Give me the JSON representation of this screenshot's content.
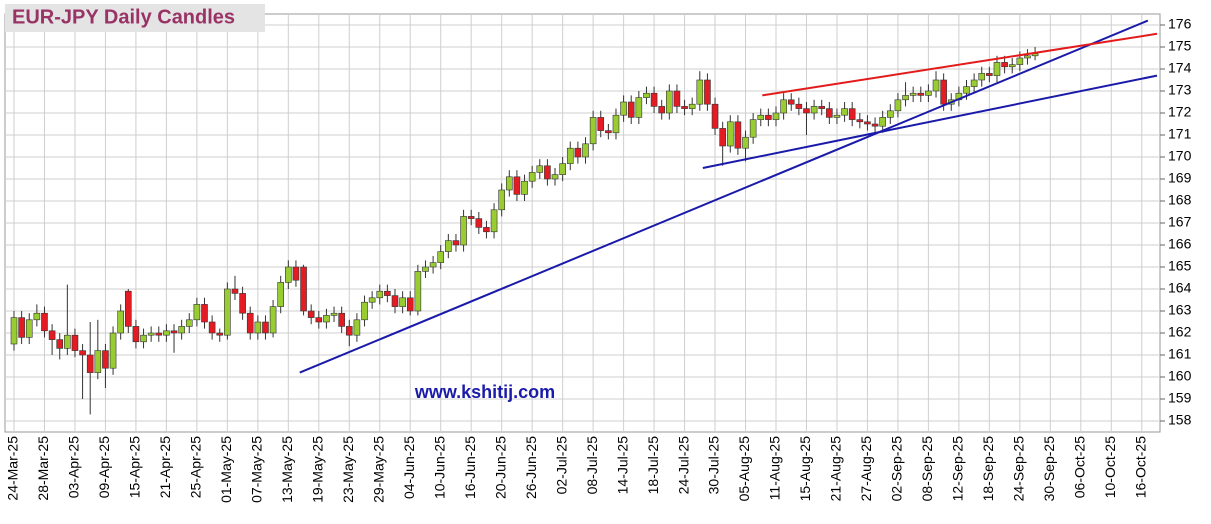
{
  "chart_data": {
    "type": "candlestick",
    "title": "EUR-JPY Daily  Candles",
    "annotation": "www.kshitij.com",
    "categories": [
      "24-Mar-25",
      null,
      null,
      null,
      "28-Mar-25",
      null,
      null,
      null,
      "03-Apr-25",
      null,
      null,
      null,
      "09-Apr-25",
      null,
      null,
      null,
      "15-Apr-25",
      null,
      null,
      null,
      "21-Apr-25",
      null,
      null,
      null,
      "25-Apr-25",
      null,
      null,
      null,
      "01-May-25",
      null,
      null,
      null,
      "07-May-25",
      null,
      null,
      null,
      "13-May-25",
      null,
      null,
      null,
      "19-May-25",
      null,
      null,
      null,
      "23-May-25",
      null,
      null,
      null,
      "29-May-25",
      null,
      null,
      null,
      "04-Jun-25",
      null,
      null,
      null,
      "10-Jun-25",
      null,
      null,
      null,
      "16-Jun-25",
      null,
      null,
      null,
      "20-Jun-25",
      null,
      null,
      null,
      "26-Jun-25",
      null,
      null,
      null,
      "02-Jul-25",
      null,
      null,
      null,
      "08-Jul-25",
      null,
      null,
      null,
      "14-Jul-25",
      null,
      null,
      null,
      "18-Jul-25",
      null,
      null,
      null,
      "24-Jul-25",
      null,
      null,
      null,
      "30-Jul-25",
      null,
      null,
      null,
      "05-Aug-25",
      null,
      null,
      null,
      "11-Aug-25",
      null,
      null,
      null,
      "15-Aug-25",
      null,
      null,
      null,
      "21-Aug-25",
      null,
      null,
      null,
      "27-Aug-25",
      null,
      null,
      null,
      "02-Sep-25",
      null,
      null,
      null,
      "08-Sep-25",
      null,
      null,
      null,
      "12-Sep-25",
      null,
      null,
      null,
      "18-Sep-25",
      null,
      null,
      null,
      "24-Sep-25",
      null,
      null,
      null,
      "30-Sep-25",
      null,
      null,
      null,
      "06-Oct-25",
      null,
      null,
      null,
      "10-Oct-25",
      null,
      null,
      null,
      "16-Oct-25",
      null
    ],
    "open": [
      161.5,
      162.7,
      161.8,
      162.6,
      162.9,
      162.1,
      161.7,
      161.3,
      161.9,
      161.2,
      161.0,
      160.2,
      161.2,
      160.4,
      162.0,
      163.9,
      162.3,
      161.6,
      161.9,
      162.0,
      161.9,
      162.1,
      162.0,
      162.3,
      162.6,
      163.3,
      162.5,
      162.0,
      161.9,
      164.0,
      163.8,
      162.9,
      162.0,
      162.5,
      162.0,
      163.2,
      164.3,
      165.0,
      165.0,
      163.0,
      162.7,
      162.5,
      162.8,
      162.9,
      162.3,
      161.9,
      162.6,
      163.4,
      163.6,
      163.9,
      163.7,
      163.2,
      163.6,
      163.0,
      164.8,
      165.0,
      165.2,
      165.7,
      166.2,
      166.0,
      167.3,
      167.2,
      166.8,
      166.6,
      167.6,
      168.5,
      169.1,
      168.3,
      168.9,
      169.3,
      169.6,
      169.0,
      169.2,
      169.7,
      170.4,
      170.0,
      170.6,
      171.8,
      171.2,
      171.1,
      171.9,
      172.5,
      171.8,
      172.7,
      172.9,
      172.3,
      172.0,
      173.0,
      172.3,
      172.2,
      172.4,
      173.5,
      172.4,
      171.3,
      170.5,
      171.6,
      170.4,
      170.9,
      171.7,
      171.9,
      171.7,
      172.0,
      172.6,
      172.4,
      172.2,
      172.0,
      172.3,
      172.2,
      171.8,
      171.9,
      172.2,
      171.7,
      171.6,
      171.5,
      171.4,
      171.8,
      172.1,
      172.6,
      172.8,
      172.9,
      172.8,
      173.0,
      173.5,
      172.4,
      172.6,
      172.9,
      173.2,
      173.5,
      173.8,
      173.7,
      174.3,
      174.1,
      174.2,
      174.5,
      174.6,
      null,
      null,
      null,
      null,
      null,
      null,
      null,
      null,
      null,
      null,
      null,
      null,
      null,
      null,
      null
    ],
    "high": [
      163.0,
      163.0,
      162.9,
      163.3,
      163.2,
      162.4,
      162.0,
      164.2,
      162.2,
      161.5,
      162.5,
      162.6,
      161.5,
      162.3,
      163.3,
      164.0,
      162.6,
      162.2,
      162.3,
      162.3,
      162.4,
      162.4,
      162.6,
      162.9,
      163.6,
      163.6,
      162.8,
      162.2,
      164.3,
      164.6,
      164.1,
      163.2,
      162.8,
      162.8,
      163.5,
      164.6,
      165.3,
      165.3,
      165.1,
      163.3,
      163.0,
      163.1,
      163.2,
      163.2,
      162.6,
      162.9,
      163.7,
      163.9,
      164.2,
      164.2,
      164.0,
      163.9,
      163.9,
      165.1,
      165.3,
      165.5,
      166.0,
      166.5,
      166.5,
      167.6,
      167.6,
      167.5,
      167.1,
      167.9,
      168.8,
      169.4,
      169.4,
      169.2,
      169.6,
      169.9,
      169.9,
      169.5,
      170.0,
      170.7,
      170.7,
      170.9,
      172.1,
      172.1,
      171.5,
      172.2,
      172.8,
      172.8,
      173.0,
      173.2,
      173.2,
      172.6,
      173.3,
      173.3,
      172.6,
      172.7,
      173.9,
      173.8,
      172.7,
      171.6,
      171.9,
      171.9,
      171.2,
      172.0,
      172.2,
      172.2,
      172.3,
      172.9,
      172.9,
      172.7,
      172.5,
      172.6,
      172.6,
      172.5,
      172.2,
      172.5,
      172.5,
      172.0,
      171.9,
      171.8,
      172.1,
      172.4,
      172.9,
      173.4,
      173.2,
      173.2,
      173.3,
      173.9,
      173.8,
      172.9,
      173.2,
      173.5,
      173.8,
      174.1,
      174.1,
      174.6,
      174.6,
      174.5,
      174.8,
      174.9,
      175.0,
      null,
      null,
      null,
      null,
      null,
      null,
      null,
      null,
      null,
      null,
      null,
      null,
      null,
      null,
      null
    ],
    "low": [
      161.2,
      161.5,
      161.5,
      162.3,
      161.8,
      161.0,
      160.8,
      161.0,
      160.9,
      159.0,
      158.3,
      159.9,
      159.5,
      160.1,
      161.7,
      162.0,
      161.3,
      161.3,
      161.6,
      161.6,
      161.6,
      161.1,
      161.7,
      162.0,
      162.3,
      162.2,
      161.7,
      161.6,
      161.7,
      163.5,
      162.6,
      161.7,
      161.7,
      161.7,
      161.8,
      162.9,
      164.0,
      164.1,
      162.8,
      162.4,
      162.2,
      162.2,
      162.5,
      162.0,
      161.4,
      161.6,
      162.3,
      163.1,
      163.3,
      163.4,
      162.9,
      162.9,
      162.8,
      162.8,
      164.5,
      164.7,
      164.9,
      165.4,
      165.7,
      165.7,
      166.9,
      166.5,
      166.3,
      166.3,
      167.3,
      168.2,
      168.0,
      168.0,
      168.6,
      169.0,
      168.7,
      168.7,
      168.9,
      169.4,
      169.7,
      169.7,
      170.3,
      170.9,
      170.8,
      170.8,
      171.6,
      171.5,
      171.5,
      172.4,
      172.0,
      171.7,
      171.7,
      172.0,
      171.9,
      171.9,
      172.1,
      172.1,
      171.0,
      169.6,
      170.2,
      170.1,
      169.8,
      170.6,
      171.4,
      171.4,
      171.4,
      171.7,
      172.1,
      171.9,
      171.0,
      171.7,
      171.9,
      171.5,
      171.5,
      171.6,
      171.4,
      171.3,
      171.2,
      171.1,
      171.1,
      171.5,
      171.8,
      172.3,
      172.5,
      172.5,
      172.5,
      172.7,
      172.1,
      172.1,
      172.3,
      172.6,
      172.9,
      173.2,
      173.4,
      173.4,
      173.8,
      173.8,
      173.9,
      174.2,
      174.4,
      null,
      null,
      null,
      null,
      null,
      null,
      null,
      null,
      null,
      null,
      null,
      null,
      null,
      null,
      null
    ],
    "close": [
      162.7,
      161.8,
      162.6,
      162.9,
      162.1,
      161.7,
      161.3,
      161.9,
      161.2,
      161.0,
      160.2,
      161.2,
      160.4,
      162.0,
      163.0,
      162.3,
      161.6,
      161.9,
      162.0,
      161.9,
      162.1,
      162.0,
      162.3,
      162.6,
      163.3,
      162.5,
      162.0,
      161.9,
      164.0,
      163.8,
      162.9,
      162.0,
      162.5,
      162.0,
      163.2,
      164.3,
      165.0,
      164.4,
      163.0,
      162.7,
      162.5,
      162.8,
      162.9,
      162.3,
      161.9,
      162.6,
      163.4,
      163.6,
      163.9,
      163.7,
      163.2,
      163.6,
      163.0,
      164.8,
      165.0,
      165.2,
      165.7,
      166.2,
      166.0,
      167.3,
      167.2,
      166.8,
      166.6,
      167.6,
      168.5,
      169.1,
      168.3,
      168.9,
      169.3,
      169.6,
      169.0,
      169.2,
      169.7,
      170.4,
      170.0,
      170.6,
      171.8,
      171.2,
      171.1,
      171.9,
      172.5,
      171.8,
      172.7,
      172.9,
      172.3,
      172.0,
      173.0,
      172.3,
      172.2,
      172.4,
      173.5,
      172.4,
      171.3,
      170.5,
      171.6,
      170.4,
      170.9,
      171.7,
      171.9,
      171.7,
      172.0,
      172.6,
      172.4,
      172.2,
      172.0,
      172.3,
      172.2,
      171.8,
      171.9,
      172.2,
      171.7,
      171.6,
      171.5,
      171.4,
      171.8,
      172.1,
      172.6,
      172.8,
      172.9,
      172.8,
      173.0,
      173.5,
      172.4,
      172.6,
      172.9,
      173.2,
      173.5,
      173.8,
      173.7,
      174.3,
      174.1,
      174.2,
      174.5,
      174.6,
      174.7,
      null,
      null,
      null,
      null,
      null,
      null,
      null,
      null,
      null,
      null,
      null,
      null,
      null,
      null,
      null
    ],
    "up_color": "#99cc33",
    "down_color": "#e31b23",
    "lines": [
      {
        "color": "#1a1aaa",
        "x": [
          37.5,
          148.8
        ],
        "y": [
          160.2,
          176.2
        ]
      },
      {
        "color": "#1a1aaa",
        "x": [
          90.4,
          150
        ],
        "y": [
          169.5,
          173.7
        ]
      },
      {
        "color": "#e31b1b",
        "x": [
          98.2,
          150
        ],
        "y": [
          172.8,
          175.6
        ]
      }
    ],
    "ylim": [
      157.5,
      176.5
    ],
    "yticks": [
      158,
      159,
      160,
      161,
      162,
      163,
      164,
      165,
      166,
      167,
      168,
      169,
      170,
      171,
      172,
      173,
      174,
      175,
      176
    ],
    "grid": true
  }
}
